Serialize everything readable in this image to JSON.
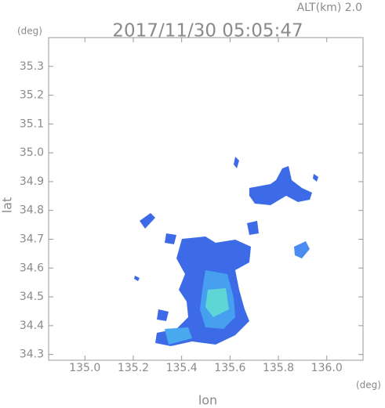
{
  "chart_data": {
    "type": "radar-map",
    "title": "2017/11/30 05:05:47",
    "altitude_label": "ALT(km) 2.0",
    "y_unit": "(deg)",
    "x_unit": "(deg)",
    "ylabel": "lat",
    "xlabel": "lon",
    "xlim": [
      134.85,
      136.15
    ],
    "ylim": [
      34.28,
      35.4
    ],
    "xticks": [
      {
        "value": 135.0,
        "label": "135.0"
      },
      135.2,
      135.4,
      135.6,
      135.8,
      {
        "value": 136.0,
        "label": "136.0"
      }
    ],
    "yticks": [
      34.3,
      34.4,
      34.5,
      34.6,
      34.7,
      34.8,
      34.9,
      {
        "value": 35.0,
        "label": "35.0"
      },
      35.1,
      35.2,
      35.3
    ]
  }
}
